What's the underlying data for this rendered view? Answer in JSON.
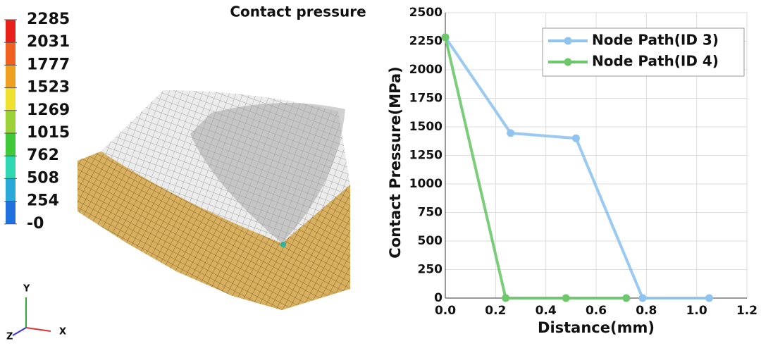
{
  "viewport": {
    "title": "Contact pressure",
    "legend_labels": [
      "2285",
      "2031",
      "1777",
      "1523",
      "1269",
      "1015",
      "762",
      "508",
      "254",
      "-0"
    ],
    "axes": [
      "Y",
      "Z",
      "X"
    ]
  },
  "chart_data": {
    "type": "line",
    "xlabel": "Distance(mm)",
    "ylabel": "Contact Pressure(MPa)",
    "series": [
      {
        "name": "Node Path(ID 3)",
        "color": "#8fc3f0",
        "x": [
          0,
          0.26,
          0.52,
          0.785,
          1.05
        ],
        "values": [
          2285,
          1445,
          1400,
          0,
          0
        ]
      },
      {
        "name": "Node Path(ID 4)",
        "color": "#6cc86a",
        "x": [
          0,
          0.24,
          0.48,
          0.72
        ],
        "values": [
          2285,
          0,
          0,
          0
        ]
      }
    ],
    "xlim": [
      0,
      1.2
    ],
    "xticks": [
      {
        "value": 0,
        "label": "0.0"
      },
      0.2,
      0.4,
      0.6,
      0.8,
      {
        "value": 1,
        "label": "1.0"
      },
      1.2
    ],
    "ylim": [
      0,
      2500
    ],
    "yticks": [
      0,
      250,
      500,
      750,
      1000,
      1250,
      1500,
      1750,
      2000,
      2250,
      2500
    ],
    "grid": true,
    "legend": "upper right"
  }
}
